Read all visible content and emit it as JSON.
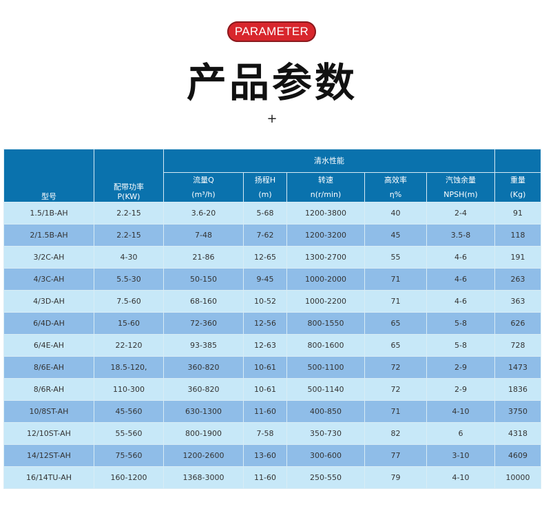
{
  "badge": "PARAMETER",
  "title": "产品参数",
  "plus": "+",
  "table": {
    "col_model": "型号",
    "col_power": [
      "配带功率",
      "P(KW)"
    ],
    "group_label": "清水性能",
    "sub_cols": [
      [
        "流量Q",
        "(m³/h)"
      ],
      [
        "扬程H",
        "(m)"
      ],
      [
        "转速",
        "n(r/min)"
      ],
      [
        "高效率",
        "η%"
      ],
      [
        "汽蚀余量",
        "NPSH(m)"
      ]
    ],
    "col_weight": [
      "重量",
      "(Kg)"
    ],
    "rows": [
      [
        "1.5/1B-AH",
        "2.2-15",
        "3.6-20",
        "5-68",
        "1200-3800",
        "40",
        "2-4",
        "91"
      ],
      [
        "2/1.5B-AH",
        "2.2-15",
        "7-48",
        "7-62",
        "1200-3200",
        "45",
        "3.5-8",
        "118"
      ],
      [
        "3/2C-AH",
        "4-30",
        "21-86",
        "12-65",
        "1300-2700",
        "55",
        "4-6",
        "191"
      ],
      [
        "4/3C-AH",
        "5.5-30",
        "50-150",
        "9-45",
        "1000-2000",
        "71",
        "4-6",
        "263"
      ],
      [
        "4/3D-AH",
        "7.5-60",
        "68-160",
        "10-52",
        "1000-2200",
        "71",
        "4-6",
        "363"
      ],
      [
        "6/4D-AH",
        "15-60",
        "72-360",
        "12-56",
        "800-1550",
        "65",
        "5-8",
        "626"
      ],
      [
        "6/4E-AH",
        "22-120",
        "93-385",
        "12-63",
        "800-1600",
        "65",
        "5-8",
        "728"
      ],
      [
        "8/6E-AH",
        "18.5-120,",
        "360-820",
        "10-61",
        "500-1100",
        "72",
        "2-9",
        "1473"
      ],
      [
        "8/6R-AH",
        "110-300",
        "360-820",
        "10-61",
        "500-1140",
        "72",
        "2-9",
        "1836"
      ],
      [
        "10/8ST-AH",
        "45-560",
        "630-1300",
        "11-60",
        "400-850",
        "71",
        "4-10",
        "3750"
      ],
      [
        "12/10ST-AH",
        "55-560",
        "800-1900",
        "7-58",
        "350-730",
        "82",
        "6",
        "4318"
      ],
      [
        "14/12ST-AH",
        "75-560",
        "1200-2600",
        "13-60",
        "300-600",
        "77",
        "3-10",
        "4609"
      ],
      [
        "16/14TU-AH",
        "160-1200",
        "1368-3000",
        "11-60",
        "250-550",
        "79",
        "4-10",
        "10000"
      ]
    ]
  }
}
